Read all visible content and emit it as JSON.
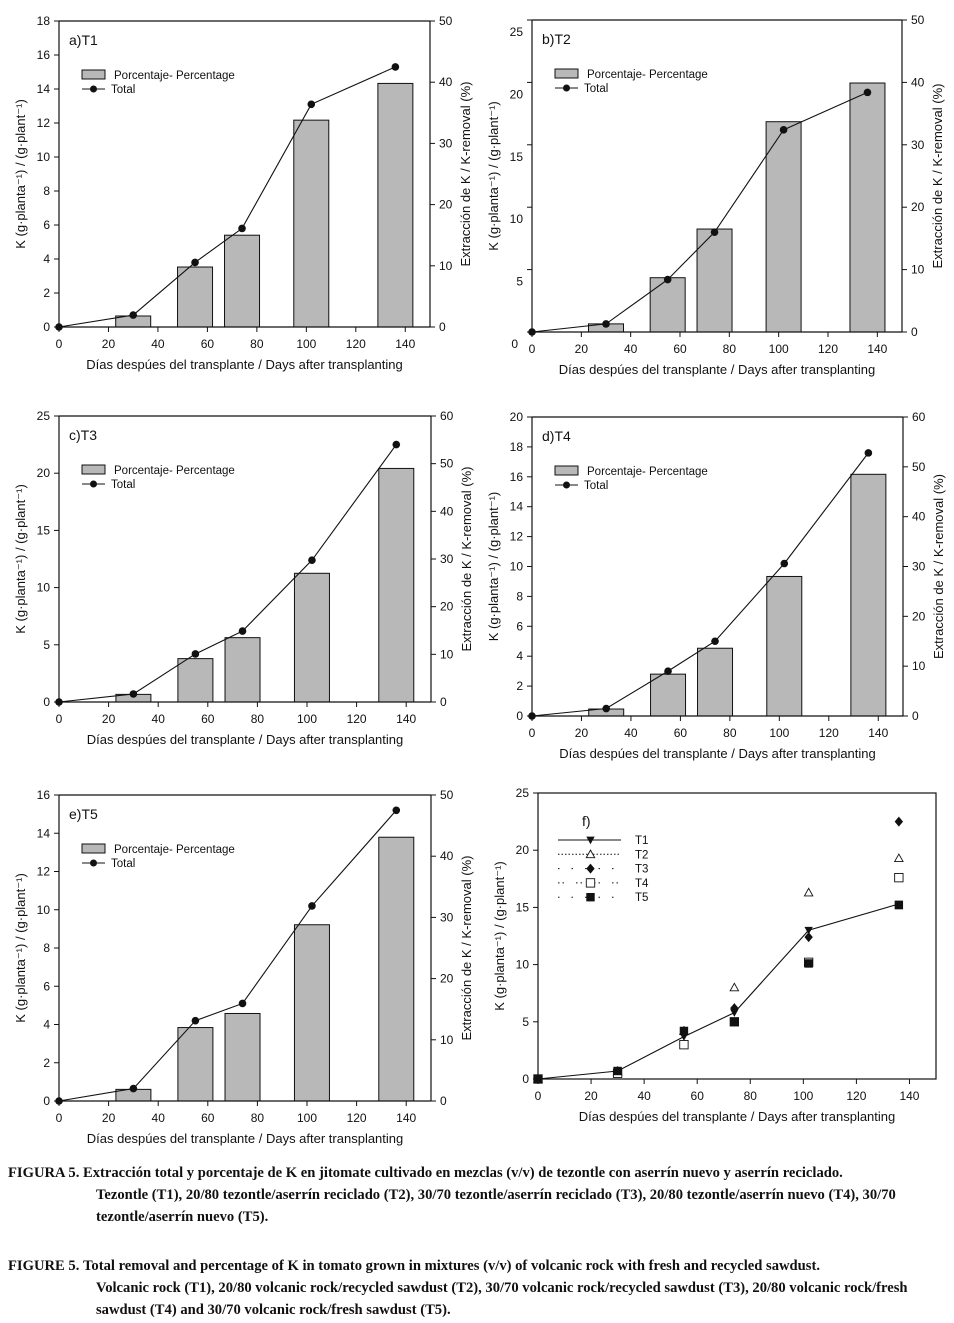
{
  "figure": {
    "xlabel": "Días despúes del transplante / Days after transplanting",
    "ylabel_left": "K (g·planta⁻¹) / (g·plant⁻¹)",
    "ylabel_right": "Extracción de K / K-removal (%)",
    "legend_bar": "Porcentaje- Percentage",
    "legend_line": "Total"
  },
  "chart_data": [
    {
      "id": "a",
      "type": "bar+line",
      "title": "a)T1",
      "xlabel": "Días despúes del transplante / Days after transplanting",
      "ylabel": "K (g·planta⁻¹) / (g·plant⁻¹)",
      "y2label": "Extracción de K / K-removal (%)",
      "xlim": [
        0,
        150
      ],
      "xticks": [
        0,
        20,
        40,
        60,
        80,
        100,
        120,
        140
      ],
      "ylim": [
        0,
        18
      ],
      "yticks": [
        0,
        2,
        4,
        6,
        8,
        10,
        12,
        14,
        16,
        18
      ],
      "y2lim": [
        0,
        50
      ],
      "y2ticks": [
        0,
        10,
        20,
        30,
        40,
        50
      ],
      "legend": [
        "Porcentaje- Percentage",
        "Total"
      ],
      "legend_position": "top-left",
      "bars": {
        "name": "Porcentaje- Percentage",
        "axis": "right",
        "x": [
          30,
          55,
          74,
          102,
          136
        ],
        "values": [
          1.8,
          9.8,
          15.0,
          33.8,
          39.8
        ]
      },
      "line": {
        "name": "Total",
        "axis": "left",
        "x": [
          0,
          30,
          55,
          74,
          102,
          136
        ],
        "values": [
          0,
          0.7,
          3.8,
          5.8,
          13.1,
          15.3
        ]
      }
    },
    {
      "id": "b",
      "type": "bar+line",
      "title": "b)T2",
      "xlabel": "Días despúes del transplante / Days after transplanting",
      "ylabel": "K (g·planta⁻¹) / (g·plant⁻¹)",
      "y2label": "Extracción de K / K-removal (%)",
      "xlim": [
        0,
        150
      ],
      "xticks": [
        0,
        20,
        40,
        60,
        80,
        100,
        120,
        140
      ],
      "ylim": [
        0,
        25
      ],
      "yticks": [
        0,
        5,
        10,
        15,
        20,
        25
      ],
      "y2lim": [
        0,
        50
      ],
      "y2ticks": [
        0,
        10,
        20,
        30,
        40,
        50
      ],
      "legend": [
        "Porcentaje- Percentage",
        "Total"
      ],
      "legend_position": "top-left",
      "bars": {
        "name": "Porcentaje- Percentage",
        "axis": "right",
        "x": [
          30,
          55,
          74,
          102,
          136
        ],
        "values": [
          1.3,
          8.7,
          16.5,
          33.7,
          39.9
        ]
      },
      "line": {
        "name": "Total",
        "axis": "left",
        "x": [
          0,
          30,
          55,
          74,
          102,
          136
        ],
        "values": [
          0,
          0.65,
          4.2,
          8.0,
          16.2,
          19.2
        ]
      }
    },
    {
      "id": "c",
      "type": "bar+line",
      "title": "c)T3",
      "xlabel": "Días despúes del transplante / Days after transplanting",
      "ylabel": "K (g·planta⁻¹) / (g·plant⁻¹)",
      "y2label": "Extracción de K / K-removal (%)",
      "xlim": [
        0,
        150
      ],
      "xticks": [
        0,
        20,
        40,
        60,
        80,
        100,
        120,
        140
      ],
      "ylim": [
        0,
        25
      ],
      "yticks": [
        0,
        5,
        10,
        15,
        20,
        25
      ],
      "y2lim": [
        0,
        60
      ],
      "y2ticks": [
        0,
        10,
        20,
        30,
        40,
        50,
        60
      ],
      "legend": [
        "Porcentaje- Percentage",
        "Total"
      ],
      "legend_position": "top-left",
      "bars": {
        "name": "Porcentaje- Percentage",
        "axis": "right",
        "x": [
          30,
          55,
          74,
          102,
          136
        ],
        "values": [
          1.6,
          9.1,
          13.5,
          27.0,
          49.0
        ]
      },
      "line": {
        "name": "Total",
        "axis": "left",
        "x": [
          0,
          30,
          55,
          74,
          102,
          136
        ],
        "values": [
          0,
          0.7,
          4.2,
          6.2,
          12.4,
          22.5
        ]
      }
    },
    {
      "id": "d",
      "type": "bar+line",
      "title": "d)T4",
      "xlabel": "Días despúes del transplante / Days after transplanting",
      "ylabel": "K (g·planta⁻¹) / (g·plant⁻¹)",
      "y2label": "Extracción de K / K-removal (%)",
      "xlim": [
        0,
        150
      ],
      "xticks": [
        0,
        20,
        40,
        60,
        80,
        100,
        120,
        140
      ],
      "ylim": [
        0,
        20
      ],
      "yticks": [
        0,
        2,
        4,
        6,
        8,
        10,
        12,
        14,
        16,
        18,
        20
      ],
      "y2lim": [
        0,
        60
      ],
      "y2ticks": [
        0,
        10,
        20,
        30,
        40,
        50,
        60
      ],
      "legend": [
        "Porcentaje- Percentage",
        "Total"
      ],
      "legend_position": "top-left",
      "bars": {
        "name": "Porcentaje- Percentage",
        "axis": "right",
        "x": [
          30,
          55,
          74,
          102,
          136
        ],
        "values": [
          1.4,
          8.4,
          13.6,
          28.0,
          48.5
        ]
      },
      "line": {
        "name": "Total",
        "axis": "left",
        "x": [
          0,
          30,
          55,
          74,
          102,
          136
        ],
        "values": [
          0,
          0.5,
          3.0,
          5.0,
          10.2,
          17.6
        ]
      }
    },
    {
      "id": "e",
      "type": "bar+line",
      "title": "e)T5",
      "xlabel": "Días despúes del transplante / Days after transplanting",
      "ylabel": "K (g·planta⁻¹) / (g·plant⁻¹)",
      "y2label": "Extracción de K / K-removal (%)",
      "xlim": [
        0,
        150
      ],
      "xticks": [
        0,
        20,
        40,
        60,
        80,
        100,
        120,
        140
      ],
      "ylim": [
        0,
        16
      ],
      "yticks": [
        0,
        2,
        4,
        6,
        8,
        10,
        12,
        14,
        16
      ],
      "y2lim": [
        0,
        50
      ],
      "y2ticks": [
        0,
        10,
        20,
        30,
        40,
        50
      ],
      "legend": [
        "Porcentaje- Percentage",
        "Total"
      ],
      "legend_position": "top-left",
      "bars": {
        "name": "Porcentaje- Percentage",
        "axis": "right",
        "x": [
          30,
          55,
          74,
          102,
          136
        ],
        "values": [
          1.9,
          12.0,
          14.3,
          28.8,
          43.1
        ]
      },
      "line": {
        "name": "Total",
        "axis": "left",
        "x": [
          0,
          30,
          55,
          74,
          102,
          136
        ],
        "values": [
          0,
          0.65,
          4.2,
          5.1,
          10.2,
          15.2
        ]
      }
    },
    {
      "id": "f",
      "type": "scatter+line",
      "title": "f)",
      "xlabel": "Días despúes del transplante / Days after transplanting",
      "ylabel": "K (g·planta⁻¹) / (g·plant⁻¹)",
      "xlim": [
        0,
        150
      ],
      "xticks": [
        0,
        20,
        40,
        60,
        80,
        100,
        120,
        140
      ],
      "ylim": [
        0,
        25
      ],
      "yticks": [
        0,
        5,
        10,
        15,
        20,
        25
      ],
      "legend_position": "top-left",
      "series": [
        {
          "name": "T1",
          "marker": "triangle-down-filled",
          "line": "solid",
          "x": [
            0,
            30,
            55,
            74,
            102,
            136
          ],
          "values": [
            0,
            0.7,
            3.7,
            5.8,
            13.0,
            15.3
          ]
        },
        {
          "name": "T2",
          "marker": "triangle-up-open",
          "line": "dotted",
          "x": [
            0,
            30,
            55,
            74,
            102,
            136
          ],
          "values": [
            0,
            0.65,
            4.2,
            8.0,
            16.3,
            19.3
          ]
        },
        {
          "name": "T3",
          "marker": "diamond-filled",
          "line": "sparse-dotted",
          "x": [
            0,
            30,
            55,
            74,
            102,
            136
          ],
          "values": [
            0,
            0.7,
            4.2,
            6.2,
            12.4,
            22.5
          ]
        },
        {
          "name": "T4",
          "marker": "square-open",
          "line": "dash-dot",
          "x": [
            0,
            30,
            55,
            74,
            102,
            136
          ],
          "values": [
            0,
            0.5,
            3.0,
            5.0,
            10.2,
            17.6
          ]
        },
        {
          "name": "T5",
          "marker": "square-filled",
          "line": "sparse-dotted",
          "x": [
            0,
            30,
            55,
            74,
            102,
            136
          ],
          "values": [
            0,
            0.7,
            4.2,
            5.0,
            10.1,
            15.2
          ]
        }
      ]
    }
  ],
  "captions": {
    "es_label": "FIGURA 5.",
    "es_line1": "Extracción total y porcentaje de K en jitomate cultivado en mezclas (v/v) de tezontle con aserrín nuevo y aserrín reciclado.",
    "es_rest": "Tezontle (T1), 20/80 tezontle/aserrín reciclado (T2), 30/70 tezontle/aserrín reciclado (T3), 20/80 tezontle/aserrín nuevo (T4), 30/70 tezontle/aserrín nuevo (T5).",
    "en_label": "FIGURE 5.",
    "en_line1": "Total removal and percentage of K in tomato grown in mixtures (v/v) of volcanic rock with fresh and recycled sawdust.",
    "en_rest": "Volcanic rock (T1), 20/80 volcanic rock/recycled sawdust (T2), 30/70 volcanic rock/recycled sawdust (T3), 20/80 volcanic rock/fresh sawdust (T4) and 30/70 volcanic rock/fresh sawdust (T5)."
  }
}
